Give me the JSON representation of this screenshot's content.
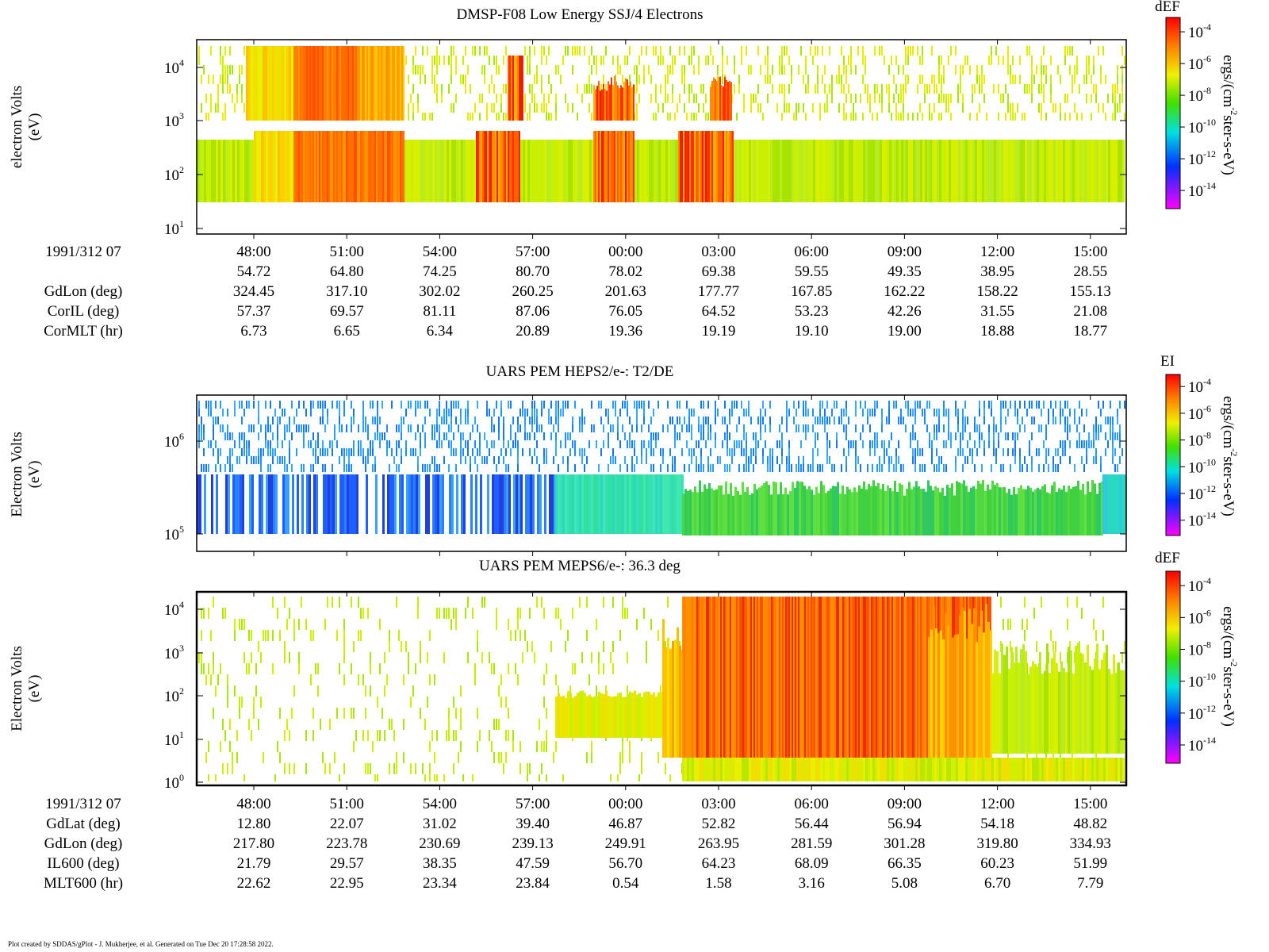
{
  "panels": [
    {
      "title": "DMSP-F08 Low Energy SSJ/4 Electrons",
      "ylabel": [
        "electron Volts",
        "(eV)"
      ],
      "yticks": [
        {
          "base": "10",
          "exp": "4"
        },
        {
          "base": "10",
          "exp": "3"
        },
        {
          "base": "10",
          "exp": "2"
        },
        {
          "base": "10",
          "exp": "1"
        }
      ],
      "colorbar": {
        "label": "dEF",
        "unit": [
          "ergs/(cm",
          "-2",
          "ster-s-eV)"
        ],
        "ticks": [
          {
            "base": "10",
            "exp": "-4"
          },
          {
            "base": "10",
            "exp": "-6"
          },
          {
            "base": "10",
            "exp": "-8"
          },
          {
            "base": "10",
            "exp": "-10"
          },
          {
            "base": "10",
            "exp": "-12"
          },
          {
            "base": "10",
            "exp": "-14"
          }
        ]
      }
    },
    {
      "title": "UARS PEM HEPS2/e-: T2/DE",
      "ylabel": [
        "Electron Volts",
        "(eV)"
      ],
      "yticks": [
        {
          "base": "10",
          "exp": "6"
        },
        {
          "base": "10",
          "exp": "5"
        }
      ],
      "colorbar": {
        "label": "EI",
        "unit": [
          "ergs/(cm",
          "-2",
          "ster-s-eV)"
        ],
        "ticks": [
          {
            "base": "10",
            "exp": "-4"
          },
          {
            "base": "10",
            "exp": "-6"
          },
          {
            "base": "10",
            "exp": "-8"
          },
          {
            "base": "10",
            "exp": "-10"
          },
          {
            "base": "10",
            "exp": "-12"
          },
          {
            "base": "10",
            "exp": "-14"
          }
        ]
      }
    },
    {
      "title": "UARS PEM MEPS6/e-: 36.3 deg",
      "ylabel": [
        "Electron Volts",
        "(eV)"
      ],
      "yticks": [
        {
          "base": "10",
          "exp": "4"
        },
        {
          "base": "10",
          "exp": "3"
        },
        {
          "base": "10",
          "exp": "2"
        },
        {
          "base": "10",
          "exp": "1"
        },
        {
          "base": "10",
          "exp": "0"
        }
      ],
      "colorbar": {
        "label": "dEF",
        "unit": [
          "ergs/(cm",
          "-2",
          "ster-s-eV)"
        ],
        "ticks": [
          {
            "base": "10",
            "exp": "-4"
          },
          {
            "base": "10",
            "exp": "-6"
          },
          {
            "base": "10",
            "exp": "-8"
          },
          {
            "base": "10",
            "exp": "-10"
          },
          {
            "base": "10",
            "exp": "-12"
          },
          {
            "base": "10",
            "exp": "-14"
          }
        ]
      }
    }
  ],
  "tables": [
    {
      "rows": [
        {
          "label": "1991/312 07",
          "values": [
            "48:00",
            "51:00",
            "54:00",
            "57:00",
            "00:00",
            "03:00",
            "06:00",
            "09:00",
            "12:00",
            "15:00"
          ]
        },
        {
          "values": [
            "54.72",
            "64.80",
            "74.25",
            "80.70",
            "78.02",
            "69.38",
            "59.55",
            "49.35",
            "38.95",
            "28.55"
          ]
        },
        {
          "label": "GdLon (deg)",
          "values": [
            "324.45",
            "317.10",
            "302.02",
            "260.25",
            "201.63",
            "177.77",
            "167.85",
            "162.22",
            "158.22",
            "155.13"
          ]
        },
        {
          "label": "CorIL (deg)",
          "values": [
            "57.37",
            "69.57",
            "81.11",
            "87.06",
            "76.05",
            "64.52",
            "53.23",
            "42.26",
            "31.55",
            "21.08"
          ]
        },
        {
          "label": "CorMLT (hr)",
          "values": [
            "6.73",
            "6.65",
            "6.34",
            "20.89",
            "19.36",
            "19.19",
            "19.10",
            "19.00",
            "18.88",
            "18.77"
          ]
        }
      ]
    },
    {
      "rows": [
        {
          "label": "1991/312 07",
          "values": [
            "48:00",
            "51:00",
            "54:00",
            "57:00",
            "00:00",
            "03:00",
            "06:00",
            "09:00",
            "12:00",
            "15:00"
          ]
        },
        {
          "label": "GdLat (deg)",
          "values": [
            "12.80",
            "22.07",
            "31.02",
            "39.40",
            "46.87",
            "52.82",
            "56.44",
            "56.94",
            "54.18",
            "48.82"
          ]
        },
        {
          "label": "GdLon (deg)",
          "values": [
            "217.80",
            "223.78",
            "230.69",
            "239.13",
            "249.91",
            "263.95",
            "281.59",
            "301.28",
            "319.80",
            "334.93"
          ]
        },
        {
          "label": "IL600 (deg)",
          "values": [
            "21.79",
            "29.57",
            "38.35",
            "47.59",
            "56.70",
            "64.23",
            "68.09",
            "66.35",
            "60.23",
            "51.99"
          ]
        },
        {
          "label": "MLT600 (hr)",
          "values": [
            "22.62",
            "22.95",
            "23.34",
            "23.84",
            "0.54",
            "1.58",
            "3.16",
            "5.08",
            "6.70",
            "7.79"
          ]
        }
      ]
    }
  ],
  "footer": "Plot created by SDDAS/gPlot - J. Mukherjee, et al.  Generated on Tue Dec 20 17:28:58 2022."
}
